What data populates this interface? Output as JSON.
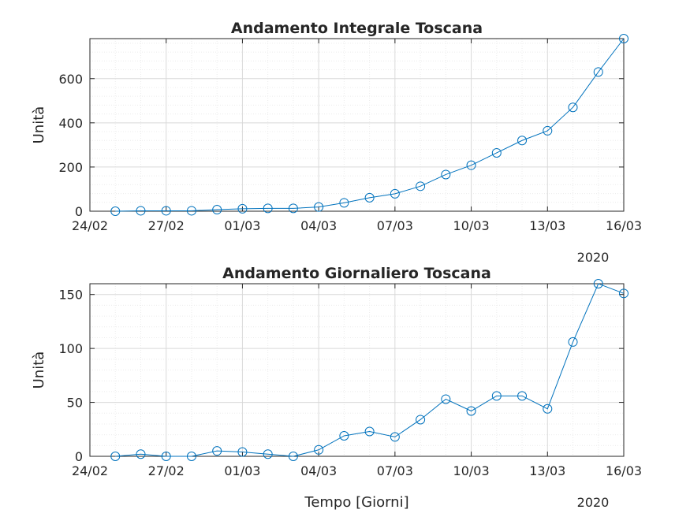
{
  "chart_data": [
    {
      "type": "line",
      "title": "Andamento Integrale Toscana",
      "ylabel": "Unità",
      "xlabel": "",
      "x_year_label": "2020",
      "x_ticks": [
        "24/02",
        "27/02",
        "01/03",
        "04/03",
        "07/03",
        "10/03",
        "13/03",
        "16/03"
      ],
      "x_dates": [
        "24/02",
        "25/02",
        "26/02",
        "27/02",
        "28/02",
        "29/02",
        "01/03",
        "02/03",
        "03/03",
        "04/03",
        "05/03",
        "06/03",
        "07/03",
        "08/03",
        "09/03",
        "10/03",
        "11/03",
        "12/03",
        "13/03",
        "14/03",
        "15/03",
        "16/03"
      ],
      "y_ticks": [
        0,
        200,
        400,
        600
      ],
      "xlim": [
        "24/02",
        "16/03"
      ],
      "ylim": [
        0,
        781
      ],
      "grid": true,
      "line_color": "#0072BD",
      "series": [
        {
          "x": [
            "25/02",
            "26/02",
            "27/02",
            "28/02",
            "29/02",
            "01/03",
            "02/03",
            "03/03",
            "04/03",
            "05/03",
            "06/03",
            "07/03",
            "08/03",
            "09/03",
            "10/03",
            "11/03",
            "12/03",
            "13/03",
            "14/03",
            "15/03",
            "16/03"
          ],
          "values": [
            0,
            2,
            2,
            2,
            7,
            11,
            13,
            13,
            19,
            38,
            61,
            79,
            113,
            166,
            208,
            264,
            320,
            364,
            470,
            630,
            781
          ]
        }
      ]
    },
    {
      "type": "line",
      "title": "Andamento Giornaliero Toscana",
      "ylabel": "Unità",
      "xlabel": "Tempo [Giorni]",
      "x_year_label": "2020",
      "x_ticks": [
        "24/02",
        "27/02",
        "01/03",
        "04/03",
        "07/03",
        "10/03",
        "13/03",
        "16/03"
      ],
      "x_dates": [
        "24/02",
        "25/02",
        "26/02",
        "27/02",
        "28/02",
        "29/02",
        "01/03",
        "02/03",
        "03/03",
        "04/03",
        "05/03",
        "06/03",
        "07/03",
        "08/03",
        "09/03",
        "10/03",
        "11/03",
        "12/03",
        "13/03",
        "14/03",
        "15/03",
        "16/03"
      ],
      "y_ticks": [
        0,
        50,
        100,
        150
      ],
      "xlim": [
        "24/02",
        "16/03"
      ],
      "ylim": [
        0,
        160
      ],
      "grid": true,
      "line_color": "#0072BD",
      "series": [
        {
          "x": [
            "25/02",
            "26/02",
            "27/02",
            "28/02",
            "29/02",
            "01/03",
            "02/03",
            "03/03",
            "04/03",
            "05/03",
            "06/03",
            "07/03",
            "08/03",
            "09/03",
            "10/03",
            "11/03",
            "12/03",
            "13/03",
            "14/03",
            "15/03",
            "16/03"
          ],
          "values": [
            0,
            2,
            0,
            0,
            5,
            4,
            2,
            0,
            6,
            19,
            23,
            18,
            34,
            53,
            42,
            56,
            56,
            44,
            106,
            160,
            151
          ]
        }
      ]
    }
  ]
}
